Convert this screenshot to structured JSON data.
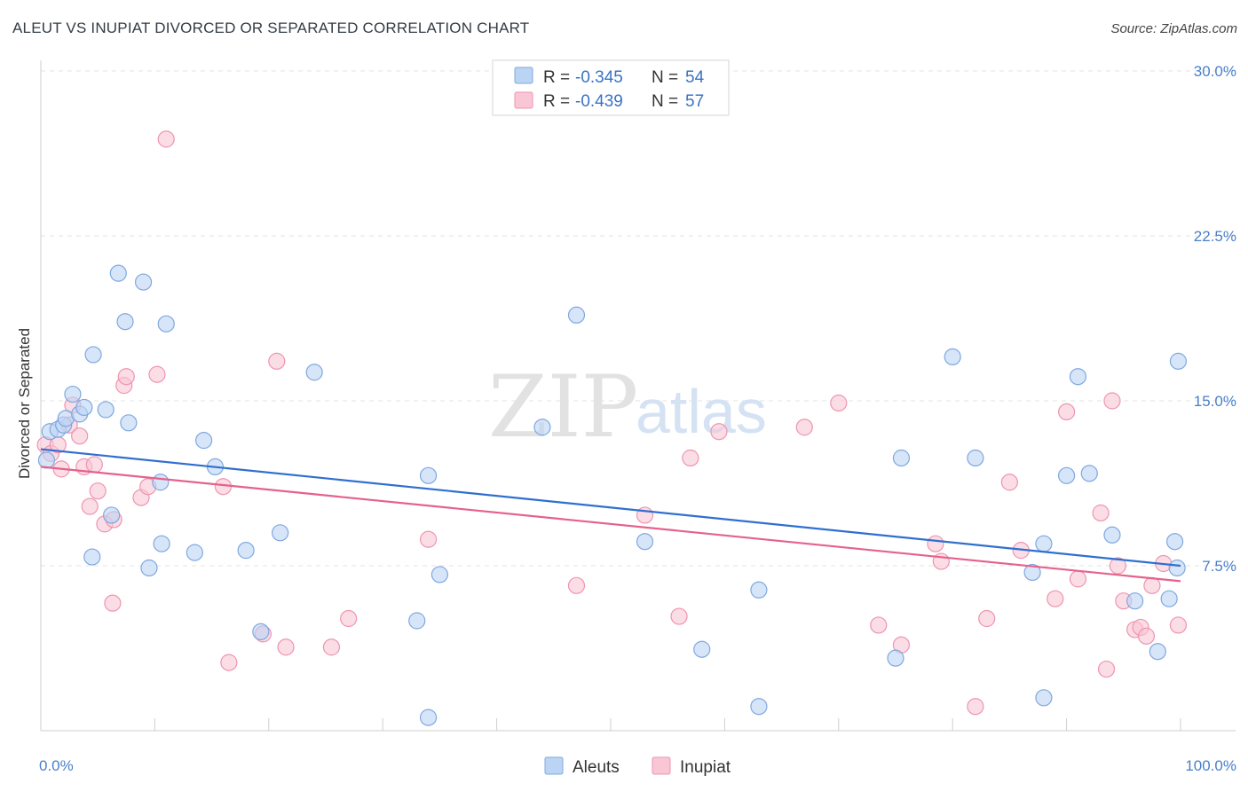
{
  "title": "ALEUT VS INUPIAT DIVORCED OR SEPARATED CORRELATION CHART",
  "source": "Source: ZipAtlas.com",
  "watermark": {
    "part1": "ZIP",
    "part2": "atlas"
  },
  "colors": {
    "aleut_fill": "#bcd4f3",
    "aleut_stroke": "#7fa8e0",
    "aleut_line": "#2f6fcf",
    "inupiat_fill": "#f9c6d6",
    "inupiat_stroke": "#ef94b1",
    "inupiat_line": "#e4628c",
    "grid": "#e3e3e3",
    "tick_label": "#4a7fc9"
  },
  "legend": {
    "rows": [
      {
        "r_label": "R = ",
        "r_value": "-0.345",
        "n_label": "N = ",
        "n_value": "54"
      },
      {
        "r_label": "R = ",
        "r_value": "-0.439",
        "n_label": "N = ",
        "n_value": "57"
      }
    ]
  },
  "chart_data": {
    "type": "scatter",
    "title": "ALEUT VS INUPIAT DIVORCED OR SEPARATED CORRELATION CHART",
    "xlabel": "",
    "ylabel": "Divorced or Separated",
    "xlim": [
      0,
      100
    ],
    "ylim": [
      0,
      30
    ],
    "x_tick_labels": [
      "0.0%",
      "100.0%"
    ],
    "y_ticks": [
      7.5,
      15.0,
      22.5,
      30.0
    ],
    "y_tick_labels": [
      "7.5%",
      "15.0%",
      "22.5%",
      "30.0%"
    ],
    "grid": true,
    "legend_position": "top-center",
    "series": [
      {
        "name": "Aleuts",
        "r": -0.345,
        "n": 54,
        "trend": {
          "x": [
            0,
            100
          ],
          "y": [
            12.8,
            7.5
          ]
        },
        "points": [
          [
            0.5,
            12.3
          ],
          [
            0.8,
            13.6
          ],
          [
            1.5,
            13.7
          ],
          [
            2.0,
            13.9
          ],
          [
            2.2,
            14.2
          ],
          [
            2.8,
            15.3
          ],
          [
            3.4,
            14.4
          ],
          [
            3.8,
            14.7
          ],
          [
            4.5,
            7.9
          ],
          [
            4.6,
            17.1
          ],
          [
            5.7,
            14.6
          ],
          [
            6.2,
            9.8
          ],
          [
            6.8,
            20.8
          ],
          [
            7.4,
            18.6
          ],
          [
            7.7,
            14.0
          ],
          [
            9.0,
            20.4
          ],
          [
            9.5,
            7.4
          ],
          [
            10.5,
            11.3
          ],
          [
            10.6,
            8.5
          ],
          [
            11.0,
            18.5
          ],
          [
            13.5,
            8.1
          ],
          [
            14.3,
            13.2
          ],
          [
            15.3,
            12.0
          ],
          [
            18.0,
            8.2
          ],
          [
            19.3,
            4.5
          ],
          [
            21.0,
            9.0
          ],
          [
            24.0,
            16.3
          ],
          [
            33.0,
            5.0
          ],
          [
            34.0,
            0.6
          ],
          [
            34.0,
            11.6
          ],
          [
            35.0,
            7.1
          ],
          [
            44.0,
            13.8
          ],
          [
            47.0,
            18.9
          ],
          [
            53.0,
            8.6
          ],
          [
            58.0,
            3.7
          ],
          [
            63.0,
            6.4
          ],
          [
            63.0,
            1.1
          ],
          [
            75.0,
            3.3
          ],
          [
            75.5,
            12.4
          ],
          [
            80.0,
            17.0
          ],
          [
            82.0,
            12.4
          ],
          [
            87.0,
            7.2
          ],
          [
            88.0,
            8.5
          ],
          [
            88.0,
            1.5
          ],
          [
            90.0,
            11.6
          ],
          [
            91.0,
            16.1
          ],
          [
            92.0,
            11.7
          ],
          [
            94.0,
            8.9
          ],
          [
            96.0,
            5.9
          ],
          [
            98.0,
            3.6
          ],
          [
            99.0,
            6.0
          ],
          [
            99.5,
            8.6
          ],
          [
            99.7,
            7.4
          ],
          [
            99.8,
            16.8
          ]
        ]
      },
      {
        "name": "Inupiat",
        "r": -0.439,
        "n": 57,
        "trend": {
          "x": [
            0,
            100
          ],
          "y": [
            12.0,
            6.8
          ]
        },
        "points": [
          [
            0.4,
            13.0
          ],
          [
            0.9,
            12.6
          ],
          [
            1.5,
            13.0
          ],
          [
            1.8,
            11.9
          ],
          [
            2.5,
            13.9
          ],
          [
            2.8,
            14.8
          ],
          [
            3.4,
            13.4
          ],
          [
            3.8,
            12.0
          ],
          [
            4.3,
            10.2
          ],
          [
            4.7,
            12.1
          ],
          [
            5.0,
            10.9
          ],
          [
            5.6,
            9.4
          ],
          [
            6.3,
            5.8
          ],
          [
            6.4,
            9.6
          ],
          [
            7.3,
            15.7
          ],
          [
            7.5,
            16.1
          ],
          [
            8.8,
            10.6
          ],
          [
            9.4,
            11.1
          ],
          [
            10.2,
            16.2
          ],
          [
            11.0,
            26.9
          ],
          [
            16.0,
            11.1
          ],
          [
            16.5,
            3.1
          ],
          [
            19.5,
            4.4
          ],
          [
            20.7,
            16.8
          ],
          [
            21.5,
            3.8
          ],
          [
            25.5,
            3.8
          ],
          [
            27.0,
            5.1
          ],
          [
            34.0,
            8.7
          ],
          [
            47.0,
            6.6
          ],
          [
            53.0,
            9.8
          ],
          [
            56.0,
            5.2
          ],
          [
            57.0,
            12.4
          ],
          [
            59.5,
            13.6
          ],
          [
            67.0,
            13.8
          ],
          [
            70.0,
            14.9
          ],
          [
            73.5,
            4.8
          ],
          [
            75.5,
            3.9
          ],
          [
            78.5,
            8.5
          ],
          [
            79.0,
            7.7
          ],
          [
            82.0,
            1.1
          ],
          [
            83.0,
            5.1
          ],
          [
            85.0,
            11.3
          ],
          [
            86.0,
            8.2
          ],
          [
            89.0,
            6.0
          ],
          [
            90.0,
            14.5
          ],
          [
            91.0,
            6.9
          ],
          [
            93.0,
            9.9
          ],
          [
            93.5,
            2.8
          ],
          [
            94.0,
            15.0
          ],
          [
            94.5,
            7.5
          ],
          [
            95.0,
            5.9
          ],
          [
            96.0,
            4.6
          ],
          [
            96.5,
            4.7
          ],
          [
            97.0,
            4.3
          ],
          [
            97.5,
            6.6
          ],
          [
            98.5,
            7.6
          ],
          [
            99.8,
            4.8
          ]
        ]
      }
    ]
  }
}
